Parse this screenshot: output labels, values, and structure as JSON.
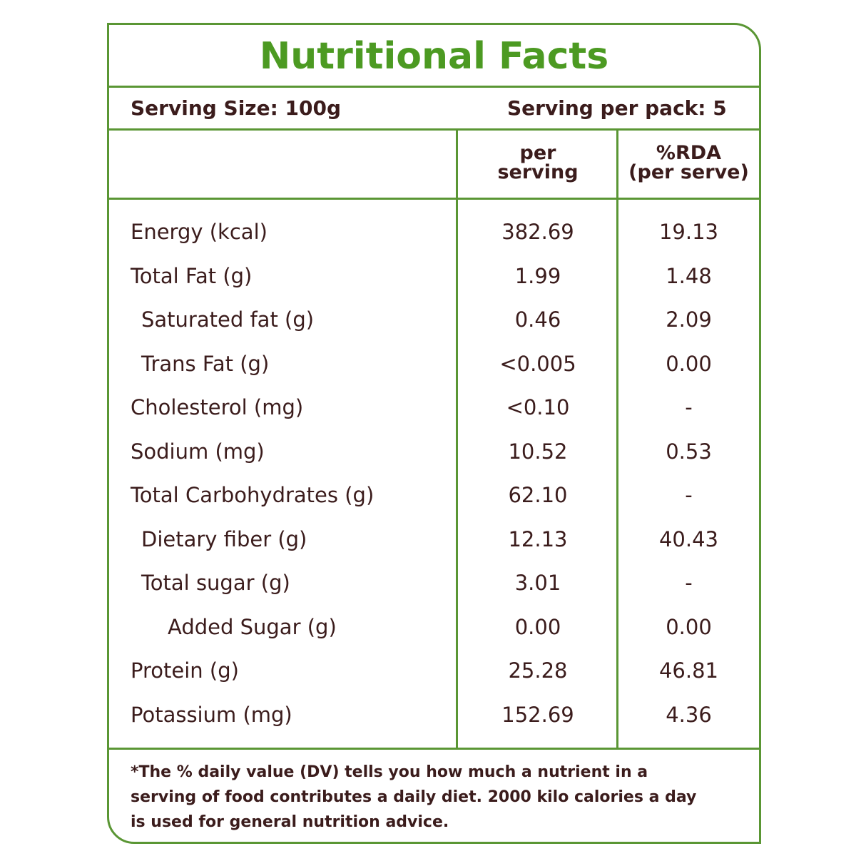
{
  "title": "Nutritional Facts",
  "serving_size": "Serving Size: 100g",
  "serving_per_pack": "Serving per pack: 5",
  "columns": {
    "per_serving_1": "per",
    "per_serving_2": "serving",
    "rda_1": "%RDA",
    "rda_2": "(per serve)"
  },
  "rows": [
    {
      "name": "Energy (kcal)",
      "value": "382.69",
      "rda": "19.13",
      "indent": 0
    },
    {
      "name": "Total Fat (g)",
      "value": "1.99",
      "rda": "1.48",
      "indent": 0
    },
    {
      "name": "Saturated fat (g)",
      "value": "0.46",
      "rda": "2.09",
      "indent": 1
    },
    {
      "name": "Trans Fat (g)",
      "value": "<0.005",
      "rda": "0.00",
      "indent": 1
    },
    {
      "name": "Cholesterol (mg)",
      "value": "<0.10",
      "rda": "-",
      "indent": 0
    },
    {
      "name": "Sodium (mg)",
      "value": "10.52",
      "rda": "0.53",
      "indent": 0
    },
    {
      "name": "Total Carbohydrates  (g)",
      "value": "62.10",
      "rda": "-",
      "indent": 0
    },
    {
      "name": "Dietary fiber (g)",
      "value": "12.13",
      "rda": "40.43",
      "indent": 1
    },
    {
      "name": "Total sugar (g)",
      "value": "3.01",
      "rda": "-",
      "indent": 1
    },
    {
      "name": "Added Sugar (g)",
      "value": "0.00",
      "rda": "0.00",
      "indent": 2
    },
    {
      "name": "Protein (g)",
      "value": "25.28",
      "rda": "46.81",
      "indent": 0
    },
    {
      "name": "Potassium (mg)",
      "value": "152.69",
      "rda": "4.36",
      "indent": 0
    }
  ],
  "footnote": "*The % daily value (DV) tells you how much a nutrient in a serving of food contributes a daily diet. 2000 kilo calories a day is used for general nutrition advice.",
  "colors": {
    "border": "#5a9634",
    "title": "#4c9a22",
    "text": "#3b1c1c"
  }
}
